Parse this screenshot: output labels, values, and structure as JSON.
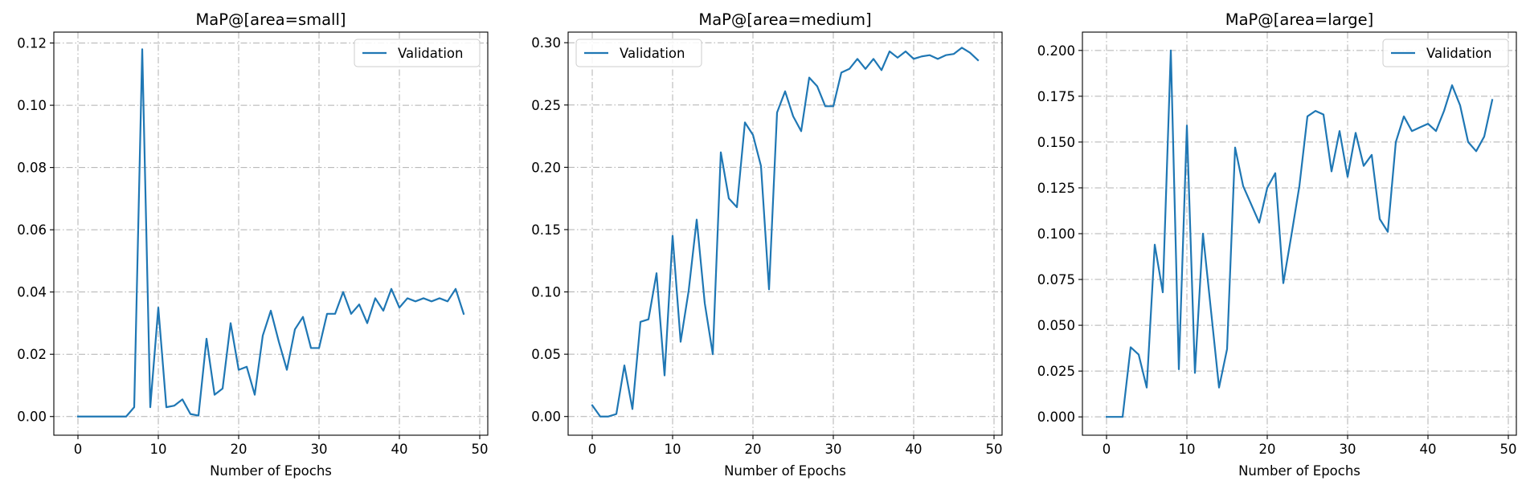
{
  "colors": {
    "series": "#1f77b4",
    "grid": "#b0b0b0",
    "axes": "#000000",
    "background": "#ffffff"
  },
  "chart_data": [
    {
      "type": "line",
      "title": "MaP@[area=small]",
      "xlabel": "Number of Epochs",
      "ylabel": "",
      "xlim": [
        -3,
        51
      ],
      "ylim": [
        -0.006,
        0.1235
      ],
      "xticks": [
        0,
        10,
        20,
        30,
        40,
        50
      ],
      "yticks": [
        0.0,
        0.02,
        0.04,
        0.06,
        0.08,
        0.1,
        0.12
      ],
      "ytick_labels": [
        "0.00",
        "0.02",
        "0.04",
        "0.06",
        "0.08",
        "0.10",
        "0.12"
      ],
      "grid": true,
      "legend_position": "upper right",
      "series": [
        {
          "name": "Validation",
          "color": "#1f77b4",
          "x": [
            0,
            1,
            2,
            3,
            4,
            5,
            6,
            7,
            8,
            9,
            10,
            11,
            12,
            13,
            14,
            15,
            16,
            17,
            18,
            19,
            20,
            21,
            22,
            23,
            24,
            25,
            26,
            27,
            28,
            29,
            30,
            31,
            32,
            33,
            34,
            35,
            36,
            37,
            38,
            39,
            40,
            41,
            42,
            43,
            44,
            45,
            46,
            47,
            48
          ],
          "values": [
            0,
            0,
            0,
            0,
            0,
            0,
            0,
            0.003,
            0.118,
            0.003,
            0.035,
            0.003,
            0.0035,
            0.0055,
            0.0008,
            0.0003,
            0.025,
            0.007,
            0.009,
            0.03,
            0.015,
            0.016,
            0.007,
            0.026,
            0.034,
            0.024,
            0.015,
            0.028,
            0.032,
            0.022,
            0.022,
            0.033,
            0.033,
            0.04,
            0.033,
            0.036,
            0.03,
            0.038,
            0.034,
            0.041,
            0.035,
            0.038,
            0.037,
            0.038,
            0.037,
            0.038,
            0.037,
            0.041,
            0.033
          ]
        }
      ]
    },
    {
      "type": "line",
      "title": "MaP@[area=medium]",
      "xlabel": "Number of Epochs",
      "ylabel": "",
      "xlim": [
        -3,
        51
      ],
      "ylim": [
        -0.015,
        0.3085
      ],
      "xticks": [
        0,
        10,
        20,
        30,
        40,
        50
      ],
      "yticks": [
        0.0,
        0.05,
        0.1,
        0.15,
        0.2,
        0.25,
        0.3
      ],
      "ytick_labels": [
        "0.00",
        "0.05",
        "0.10",
        "0.15",
        "0.20",
        "0.25",
        "0.30"
      ],
      "grid": true,
      "legend_position": "upper left",
      "series": [
        {
          "name": "Validation",
          "color": "#1f77b4",
          "x": [
            0,
            1,
            2,
            3,
            4,
            5,
            6,
            7,
            8,
            9,
            10,
            11,
            12,
            13,
            14,
            15,
            16,
            17,
            18,
            19,
            20,
            21,
            22,
            23,
            24,
            25,
            26,
            27,
            28,
            29,
            30,
            31,
            32,
            33,
            34,
            35,
            36,
            37,
            38,
            39,
            40,
            41,
            42,
            43,
            44,
            45,
            46,
            47,
            48
          ],
          "values": [
            0.009,
            0,
            0,
            0.002,
            0.041,
            0.006,
            0.076,
            0.078,
            0.115,
            0.033,
            0.145,
            0.06,
            0.101,
            0.158,
            0.091,
            0.05,
            0.212,
            0.175,
            0.168,
            0.236,
            0.226,
            0.201,
            0.102,
            0.244,
            0.261,
            0.241,
            0.229,
            0.272,
            0.265,
            0.249,
            0.249,
            0.276,
            0.279,
            0.287,
            0.279,
            0.287,
            0.278,
            0.293,
            0.288,
            0.293,
            0.287,
            0.289,
            0.29,
            0.287,
            0.29,
            0.291,
            0.296,
            0.292,
            0.286
          ]
        }
      ]
    },
    {
      "type": "line",
      "title": "MaP@[area=large]",
      "xlabel": "Number of Epochs",
      "ylabel": "",
      "xlim": [
        -3,
        51
      ],
      "ylim": [
        -0.01,
        0.21
      ],
      "xticks": [
        0,
        10,
        20,
        30,
        40,
        50
      ],
      "yticks": [
        0.0,
        0.025,
        0.05,
        0.075,
        0.1,
        0.125,
        0.15,
        0.175,
        0.2
      ],
      "ytick_labels": [
        "0.000",
        "0.025",
        "0.050",
        "0.075",
        "0.100",
        "0.125",
        "0.150",
        "0.175",
        "0.200"
      ],
      "grid": true,
      "legend_position": "upper right",
      "series": [
        {
          "name": "Validation",
          "color": "#1f77b4",
          "x": [
            0,
            1,
            2,
            3,
            4,
            5,
            6,
            7,
            8,
            9,
            10,
            11,
            12,
            13,
            14,
            15,
            16,
            17,
            18,
            19,
            20,
            21,
            22,
            23,
            24,
            25,
            26,
            27,
            28,
            29,
            30,
            31,
            32,
            33,
            34,
            35,
            36,
            37,
            38,
            39,
            40,
            41,
            42,
            43,
            44,
            45,
            46,
            47,
            48
          ],
          "values": [
            0,
            0,
            0,
            0.038,
            0.034,
            0.016,
            0.094,
            0.068,
            0.2,
            0.026,
            0.159,
            0.024,
            0.1,
            0.058,
            0.016,
            0.037,
            0.147,
            0.126,
            0.116,
            0.106,
            0.125,
            0.133,
            0.073,
            0.099,
            0.126,
            0.164,
            0.167,
            0.165,
            0.134,
            0.156,
            0.131,
            0.155,
            0.137,
            0.143,
            0.108,
            0.101,
            0.15,
            0.164,
            0.156,
            0.158,
            0.16,
            0.156,
            0.167,
            0.181,
            0.17,
            0.15,
            0.145,
            0.153,
            0.173
          ]
        }
      ]
    }
  ]
}
